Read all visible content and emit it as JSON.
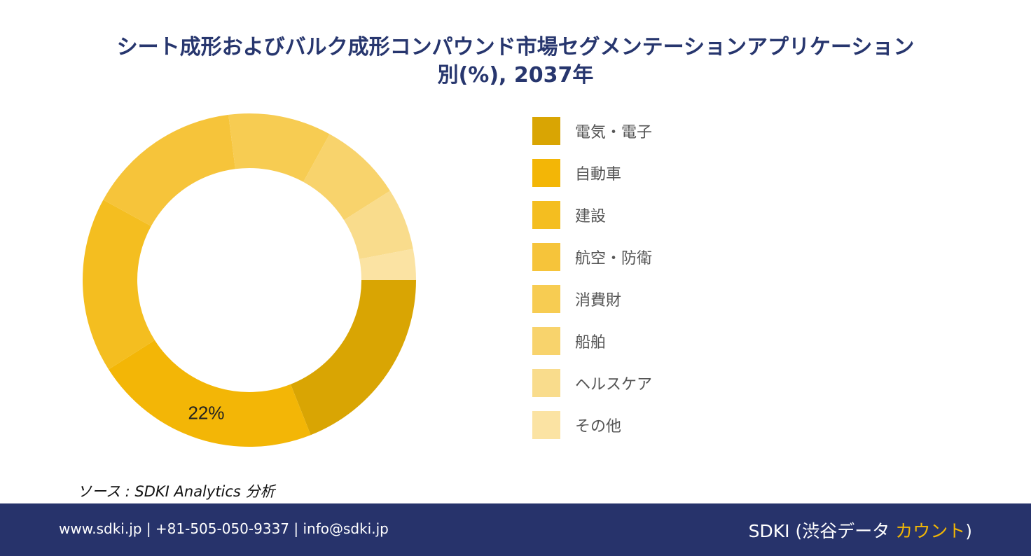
{
  "header": {
    "title_line1": "シート成形およびバルク成形コンパウンド市場セグメンテーションアプリケーション",
    "title_line2": "別(%), 2037年"
  },
  "chart_data": {
    "type": "pie",
    "categories": [
      "電気・電子",
      "自動車",
      "建設",
      "航空・防衛",
      "消費財",
      "船舶",
      "ヘルスケア",
      "その他"
    ],
    "values": [
      19,
      22,
      17,
      15,
      10,
      8,
      6,
      3
    ],
    "colors": [
      "#d9a503",
      "#f3b606",
      "#f4be20",
      "#f6c43a",
      "#f7cc52",
      "#f8d36c",
      "#f9dc8c",
      "#fbe3a3"
    ],
    "data_labels": [
      {
        "index": 1,
        "text": "22%"
      }
    ],
    "start": "3 o'clock, clockwise",
    "hole": "donut"
  },
  "source": {
    "text": "ソース : SDKI Analytics 分析"
  },
  "footer": {
    "contact": "www.sdki.jp | +81-505-050-9337 | info@sdki.jp",
    "brand_prefix": "SDKI (渋谷データ ",
    "brand_accent": "カウント",
    "brand_suffix": ")"
  }
}
